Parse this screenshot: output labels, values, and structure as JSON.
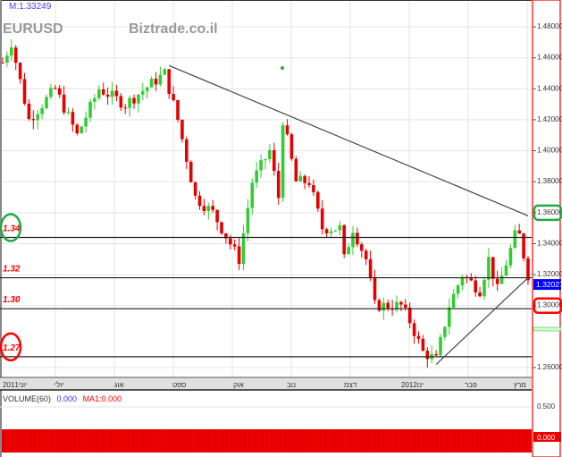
{
  "header": {
    "last_price_label": "M:1.33249",
    "symbol": "EURUSD",
    "watermark": "Biztrade.co.il"
  },
  "colors": {
    "up": "#33cc33",
    "down": "#e60000",
    "axis_border": "#ff0000",
    "support_circle": "#ff0000",
    "resistance_circle": "#22aa44",
    "current_price_bg": "#0000ff"
  },
  "chart_data": {
    "type": "candlestick",
    "symbol": "EURUSD",
    "y_ticks": [
      "1.48000",
      "1.46000",
      "1.44000",
      "1.42000",
      "1.40000",
      "1.38000",
      "1.36000",
      "1.34000",
      "1.32000",
      "1.30000",
      "1.26000"
    ],
    "ylim": [
      1.255,
      1.5
    ],
    "x_ticks": [
      "2011יוני",
      "יולי",
      "אוג",
      "ספט",
      "אוק",
      "נוב",
      "דצמ",
      "2012ינו",
      "פבר",
      "מרץ"
    ],
    "current_price": "1.32027",
    "price_path": [
      [
        0,
        1.457
      ],
      [
        2,
        1.47
      ],
      [
        6,
        1.42
      ],
      [
        12,
        1.44
      ],
      [
        17,
        1.41
      ],
      [
        22,
        1.44
      ],
      [
        28,
        1.43
      ],
      [
        37,
        1.45
      ],
      [
        40,
        1.42
      ],
      [
        44,
        1.37
      ],
      [
        48,
        1.36
      ],
      [
        53,
        1.335
      ],
      [
        54,
        1.33
      ],
      [
        57,
        1.38
      ],
      [
        61,
        1.4
      ],
      [
        63,
        1.37
      ],
      [
        64,
        1.42
      ],
      [
        67,
        1.38
      ],
      [
        70,
        1.38
      ],
      [
        73,
        1.35
      ],
      [
        77,
        1.35
      ],
      [
        78,
        1.33
      ],
      [
        80,
        1.35
      ],
      [
        83,
        1.33
      ],
      [
        85,
        1.3
      ],
      [
        91,
        1.3
      ],
      [
        93,
        1.29
      ],
      [
        96,
        1.27
      ],
      [
        99,
        1.265
      ],
      [
        102,
        1.3
      ],
      [
        105,
        1.32
      ],
      [
        109,
        1.31
      ],
      [
        111,
        1.33
      ],
      [
        113,
        1.31
      ],
      [
        117,
        1.345
      ],
      [
        118,
        1.345
      ],
      [
        120,
        1.32
      ]
    ],
    "horizontal_levels": [
      {
        "label": "1.34",
        "price": 1.344,
        "circle": "green"
      },
      {
        "label": "1.32",
        "price": 1.318
      },
      {
        "label": "1.30",
        "price": 1.298
      },
      {
        "label": "1.27",
        "price": 1.267,
        "circle": "red"
      }
    ],
    "trendlines": [
      {
        "from": [
          38,
          1.455
        ],
        "to": [
          120,
          1.358
        ]
      },
      {
        "from": [
          99,
          1.262
        ],
        "to": [
          120,
          1.318
        ]
      }
    ],
    "highlighted_axis_labels": [
      {
        "label": "1.36000",
        "color": "green"
      },
      {
        "label": "1.30000",
        "color": "red"
      }
    ],
    "volume": {
      "title": "VOLUME(60)",
      "value": "0.000",
      "ma": "MA1:0.000",
      "y_ticks": [
        "0.500",
        "0.000"
      ]
    }
  }
}
